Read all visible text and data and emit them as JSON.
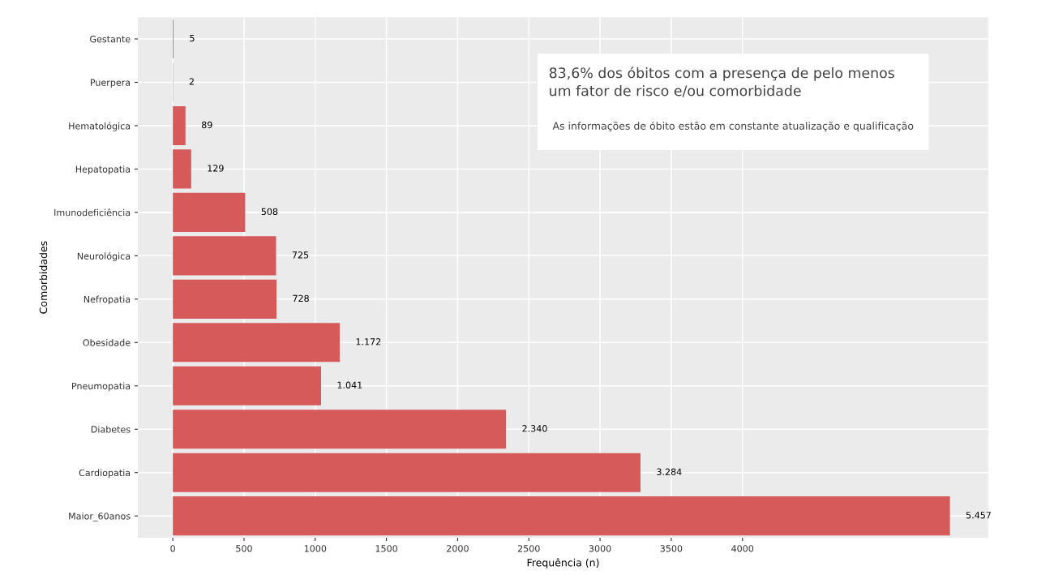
{
  "chart_data": {
    "type": "bar",
    "orientation": "horizontal",
    "xlabel": "Frequência (n)",
    "ylabel": "Comorbidades",
    "categories": [
      "Gestante",
      "Puerpera",
      "Hematológica",
      "Hepatopatia",
      "Imunodeficiência",
      "Neurológica",
      "Nefropatia",
      "Obesidade",
      "Pneumopatia",
      "Diabetes",
      "Cardiopatia",
      "Maior_60anos"
    ],
    "values": [
      5,
      2,
      89,
      129,
      508,
      725,
      728,
      1172,
      1041,
      2340,
      3284,
      5457
    ],
    "value_labels": [
      "5",
      "2",
      "89",
      "129",
      "508",
      "725",
      "728",
      "1.172",
      "1.041",
      "2.340",
      "3.284",
      "5.457"
    ],
    "color": "#d65a5a",
    "xlim": [
      -245,
      5726
    ],
    "xticks": [
      0,
      500,
      1000,
      1500,
      2000,
      2500,
      3000,
      3500,
      4000
    ],
    "grid": true,
    "annotations": [
      "83,6% dos óbitos com a presença de pelo menos um fator de risco e/ou comorbidade",
      "As informações de óbito estão em constante atualização e qualificação"
    ]
  }
}
